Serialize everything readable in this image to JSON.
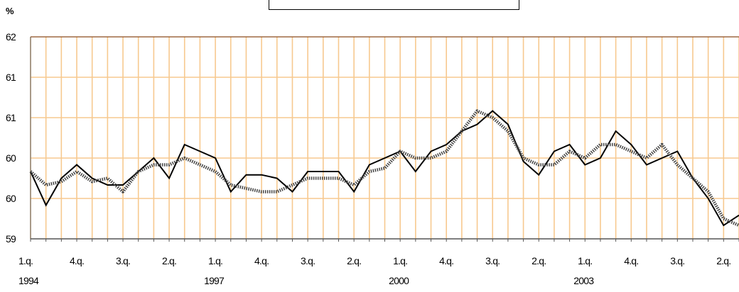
{
  "chart_data": {
    "type": "line",
    "ylabel": "%",
    "ylim": [
      59,
      62
    ],
    "y_tick_labels": [
      "59",
      "60",
      "60",
      "61",
      "61",
      "62"
    ],
    "grid": true,
    "x_tick_labels": [
      {
        "index": 0,
        "quarter": "1.q.",
        "year": "1994"
      },
      {
        "index": 3,
        "quarter": "4.q.",
        "year": ""
      },
      {
        "index": 6,
        "quarter": "3.q.",
        "year": ""
      },
      {
        "index": 9,
        "quarter": "2.q.",
        "year": ""
      },
      {
        "index": 12,
        "quarter": "1.q.",
        "year": "1997"
      },
      {
        "index": 15,
        "quarter": "4.q.",
        "year": ""
      },
      {
        "index": 18,
        "quarter": "3.q.",
        "year": ""
      },
      {
        "index": 21,
        "quarter": "2.q.",
        "year": ""
      },
      {
        "index": 24,
        "quarter": "1.q.",
        "year": "2000"
      },
      {
        "index": 27,
        "quarter": "4.q.",
        "year": ""
      },
      {
        "index": 30,
        "quarter": "3.q.",
        "year": ""
      },
      {
        "index": 33,
        "quarter": "2.q.",
        "year": ""
      },
      {
        "index": 36,
        "quarter": "1.q.",
        "year": "2003"
      },
      {
        "index": 39,
        "quarter": "4.q.",
        "year": ""
      },
      {
        "index": 42,
        "quarter": "3.q.",
        "year": ""
      },
      {
        "index": 45,
        "quarter": "2.q.",
        "year": ""
      }
    ],
    "series": [
      {
        "style": "solid",
        "color": "#000000",
        "values": [
          60.0,
          59.5,
          59.9,
          60.1,
          59.9,
          59.8,
          59.8,
          60.0,
          60.2,
          59.9,
          60.4,
          60.3,
          60.2,
          59.7,
          59.95,
          59.95,
          59.9,
          59.7,
          60.0,
          60.0,
          60.0,
          59.7,
          60.1,
          60.2,
          60.3,
          60.0,
          60.3,
          60.4,
          60.6,
          60.7,
          60.9,
          60.7,
          60.15,
          59.95,
          60.3,
          60.4,
          60.1,
          60.2,
          60.6,
          60.4,
          60.1,
          60.2,
          60.3,
          59.9,
          59.6,
          59.2,
          59.35
        ]
      },
      {
        "style": "dotted",
        "color": "#444444",
        "values": [
          60.0,
          59.8,
          59.85,
          60.0,
          59.85,
          59.9,
          59.7,
          60.0,
          60.1,
          60.1,
          60.2,
          60.1,
          60.0,
          59.8,
          59.75,
          59.7,
          59.7,
          59.8,
          59.9,
          59.9,
          59.9,
          59.8,
          60.0,
          60.05,
          60.3,
          60.2,
          60.2,
          60.3,
          60.6,
          60.9,
          60.8,
          60.6,
          60.2,
          60.1,
          60.1,
          60.3,
          60.2,
          60.4,
          60.4,
          60.3,
          60.2,
          60.4,
          60.1,
          59.9,
          59.7,
          59.3,
          59.2
        ]
      }
    ]
  }
}
